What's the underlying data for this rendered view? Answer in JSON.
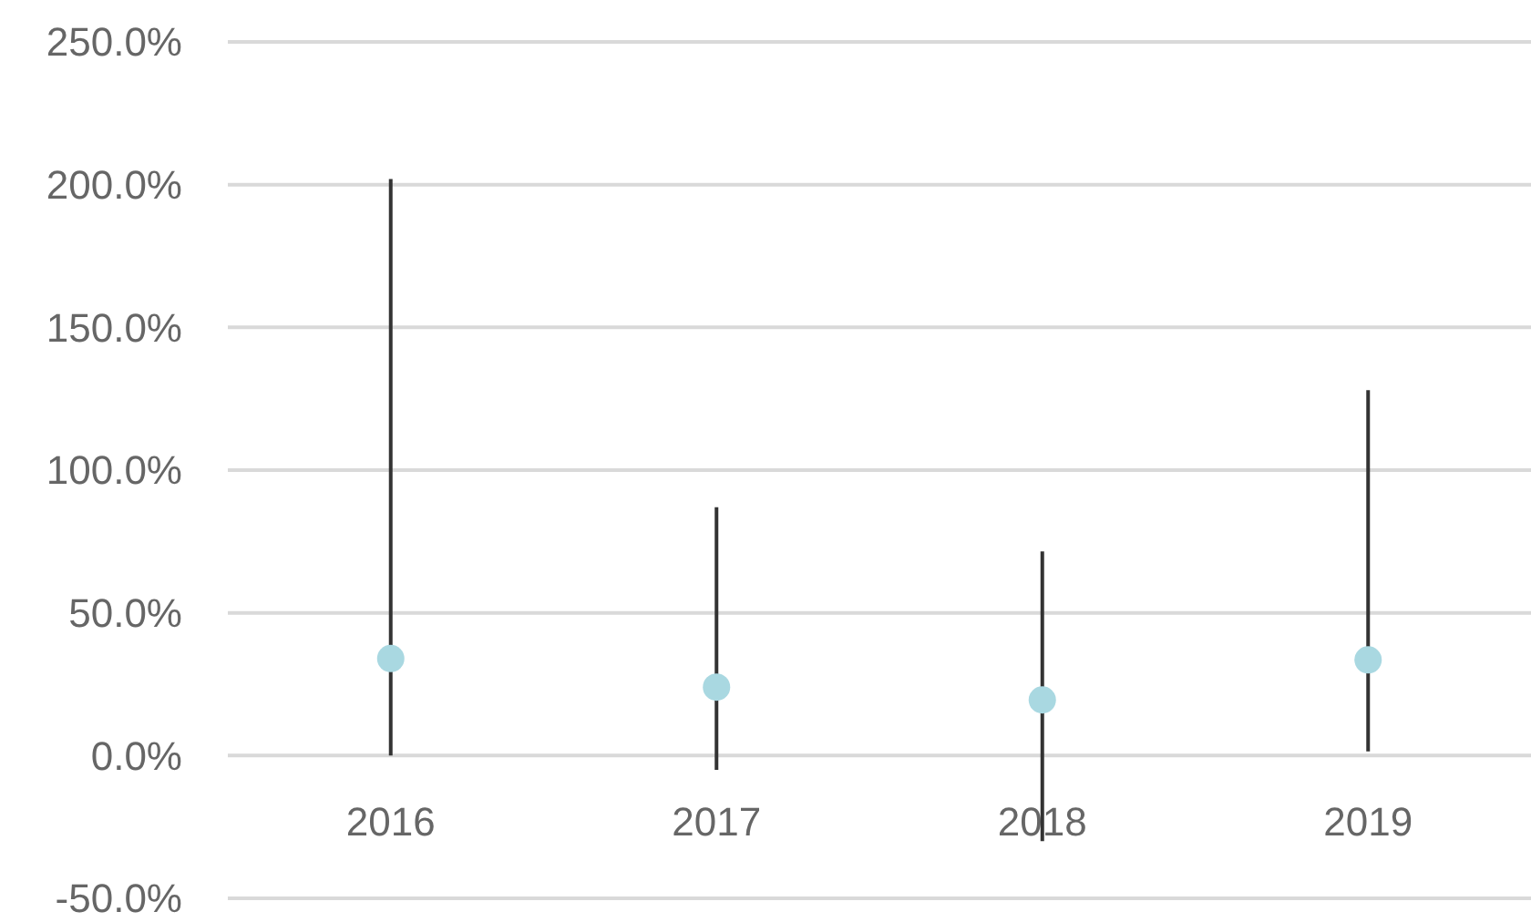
{
  "chart_data": {
    "type": "scatter",
    "categories": [
      "2016",
      "2017",
      "2018",
      "2019"
    ],
    "series": [
      {
        "color": "#a9d8e1",
        "values": [
          34,
          24,
          19.5,
          33.5
        ],
        "errors": [
          [
            0,
            202
          ],
          [
            -5,
            87
          ],
          [
            -30,
            71.5
          ],
          [
            1.5,
            128
          ]
        ]
      }
    ],
    "ylim": [
      -50,
      250
    ],
    "yticks": [
      {
        "value": -50,
        "label": "-50.0%"
      },
      {
        "value": 0,
        "label": "0.0%"
      },
      {
        "value": 50,
        "label": "50.0%"
      },
      {
        "value": 100,
        "label": "100.0%"
      },
      {
        "value": 150,
        "label": "150.0%"
      },
      {
        "value": 200,
        "label": "200.0%"
      },
      {
        "value": 250,
        "label": "250.0%"
      }
    ],
    "grid": "y",
    "marker": "circle"
  }
}
